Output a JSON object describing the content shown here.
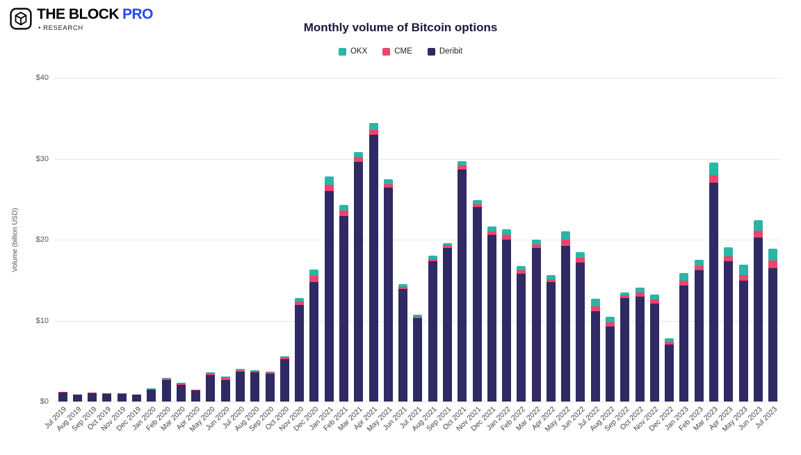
{
  "header": {
    "logo_line1": "THE BLOCK",
    "logo_pro": "PRO",
    "logo_sub": "• RESEARCH"
  },
  "chart_data": {
    "type": "bar",
    "stacked": true,
    "title": "Monthly volume of Bitcoin options",
    "ylabel": "Volume (billion USD)",
    "ylim": [
      0,
      40
    ],
    "yticks": [
      "$0",
      "$10",
      "$20",
      "$30",
      "$40"
    ],
    "grid": "horizontal",
    "legend_position": "top-center",
    "categories": [
      "Jul 2019",
      "Aug 2019",
      "Sep 2019",
      "Oct 2019",
      "Nov 2019",
      "Dec 2019",
      "Jan 2020",
      "Feb 2020",
      "Mar 2020",
      "Apr 2020",
      "May 2020",
      "Jun 2020",
      "Jul 2020",
      "Aug 2020",
      "Sep 2020",
      "Oct 2020",
      "Nov 2020",
      "Dec 2020",
      "Jan 2021",
      "Feb 2021",
      "Mar 2021",
      "Apr 2021",
      "May 2021",
      "Jun 2021",
      "Jul 2021",
      "Aug 2021",
      "Sep 2021",
      "Oct 2021",
      "Nov 2021",
      "Dec 2021",
      "Jan 2022",
      "Feb 2022",
      "Mar 2022",
      "Apr 2022",
      "May 2022",
      "Jun 2022",
      "Jul 2022",
      "Aug 2022",
      "Sep 2022",
      "Oct 2022",
      "Nov 2022",
      "Dec 2022",
      "Jan 2023",
      "Feb 2023",
      "Mar 2023",
      "Apr 2023",
      "May 2023",
      "Jun 2023",
      "Jul 2023"
    ],
    "series": [
      {
        "name": "OKX",
        "color": "#2cb5a5",
        "values": [
          0,
          0,
          0,
          0,
          0,
          0,
          0.05,
          0.05,
          0.1,
          0.05,
          0.1,
          0.1,
          0.1,
          0.1,
          0.1,
          0.1,
          0.4,
          0.8,
          1.0,
          0.7,
          0.6,
          0.8,
          0.6,
          0.3,
          0.2,
          0.4,
          0.3,
          0.5,
          0.5,
          0.6,
          0.7,
          0.5,
          0.6,
          0.5,
          1.0,
          0.7,
          0.9,
          0.7,
          0.4,
          0.6,
          0.6,
          0.4,
          1.0,
          0.8,
          1.5,
          1.2,
          1.3,
          1.3,
          1.5
        ]
      },
      {
        "name": "CME",
        "color": "#f0426e",
        "values": [
          0.1,
          0.05,
          0.1,
          0.05,
          0.05,
          0.05,
          0.1,
          0.15,
          0.15,
          0.1,
          0.2,
          0.3,
          0.2,
          0.2,
          0.2,
          0.3,
          0.5,
          0.7,
          0.8,
          0.7,
          0.6,
          0.6,
          0.5,
          0.3,
          0.2,
          0.3,
          0.3,
          0.5,
          0.4,
          0.4,
          0.6,
          0.4,
          0.4,
          0.3,
          0.8,
          0.6,
          0.6,
          0.5,
          0.3,
          0.5,
          0.5,
          0.4,
          0.6,
          0.5,
          1.0,
          0.6,
          0.7,
          0.8,
          0.9
        ]
      },
      {
        "name": "Deribit",
        "color": "#2f2a63",
        "values": [
          1.1,
          0.85,
          1.0,
          0.95,
          0.95,
          0.85,
          1.45,
          2.7,
          2.05,
          1.35,
          3.3,
          2.7,
          3.7,
          3.6,
          3.4,
          5.2,
          11.9,
          14.8,
          26.0,
          22.9,
          29.6,
          33.0,
          26.4,
          13.9,
          10.3,
          17.3,
          19.0,
          28.7,
          24.0,
          20.6,
          20.0,
          15.8,
          19.0,
          14.8,
          19.2,
          17.2,
          11.2,
          9.3,
          12.8,
          13.0,
          12.1,
          7.0,
          14.3,
          16.2,
          27.0,
          17.3,
          14.9,
          20.3,
          16.5
        ]
      }
    ],
    "stack_order_bottom_to_top": [
      "Deribit",
      "CME",
      "OKX"
    ]
  }
}
